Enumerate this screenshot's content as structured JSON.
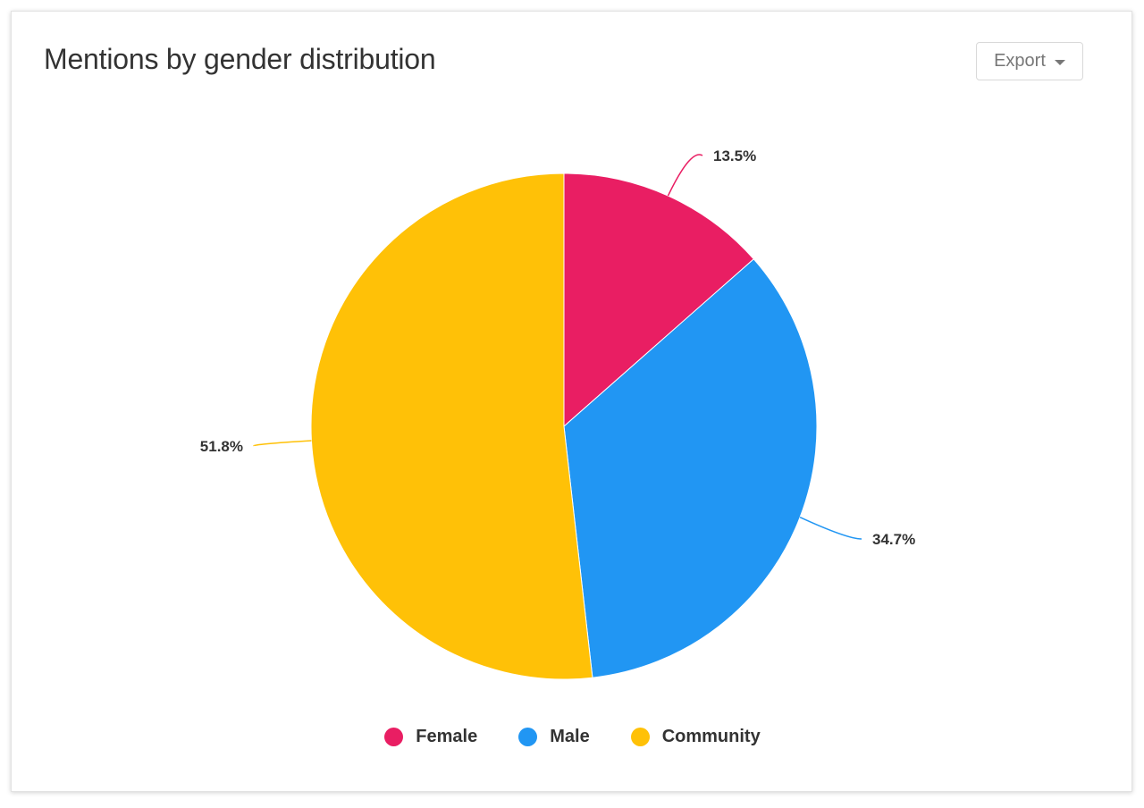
{
  "card": {
    "title": "Mentions by gender distribution",
    "export_label": "Export",
    "export_icon": "caret-down-icon"
  },
  "chart_data": {
    "type": "pie",
    "title": "Mentions by gender distribution",
    "categories": [
      "Female",
      "Male",
      "Community"
    ],
    "values": [
      13.5,
      34.7,
      51.8
    ],
    "units": "%",
    "data_labels": [
      "13.5%",
      "34.7%",
      "51.8%"
    ],
    "colors": [
      "#E91E63",
      "#2196F3",
      "#FFC107"
    ],
    "start_angle": "12 o'clock, clockwise",
    "legend_position": "bottom"
  },
  "legend": {
    "items": [
      {
        "label": "Female",
        "color": "#E91E63"
      },
      {
        "label": "Male",
        "color": "#2196F3"
      },
      {
        "label": "Community",
        "color": "#FFC107"
      }
    ]
  }
}
